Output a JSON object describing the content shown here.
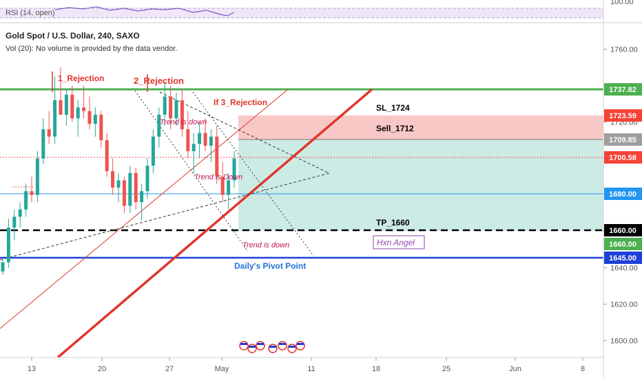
{
  "rsi": {
    "label": "RSI (14, open)",
    "level_label": "100.00"
  },
  "symbol": {
    "title": "Gold Spot / U.S. Dollar, 240, SAXO",
    "volume_note": "Vol (20): No volume is provided by the data vendor."
  },
  "chart_data": {
    "type": "candlestick",
    "y_ticks": [
      "1760.00",
      "1740.00",
      "1720.00",
      "1700.00",
      "1680.00",
      "1660.00",
      "1640.00",
      "1620.00",
      "1600.00"
    ],
    "x_ticks": [
      "13",
      "20",
      "27",
      "May",
      "11",
      "18",
      "25",
      "Jun",
      "8"
    ],
    "price_badges": [
      {
        "label": "1737.82",
        "bg": "#4caf50",
        "fg": "#ffffff",
        "price": 1737.82
      },
      {
        "label": "1723.59",
        "bg": "#f44336",
        "fg": "#ffffff",
        "price": 1723.59
      },
      {
        "label": "1709.85",
        "bg": "#9e9e9e",
        "fg": "#ffffff",
        "price": 1709.85
      },
      {
        "label": "1700.58",
        "bg": "#f44336",
        "fg": "#ffffff",
        "price": 1700.58
      },
      {
        "label": "1680.00",
        "bg": "#2196f3",
        "fg": "#ffffff",
        "price": 1680.0
      },
      {
        "label": "1660.00",
        "bg": "#000000",
        "fg": "#ffffff",
        "price": 1660.0
      },
      {
        "label": "1660.00",
        "bg": "#4caf50",
        "fg": "#ffffff",
        "price": 1660.0
      },
      {
        "label": "1645.00",
        "bg": "#1e40d8",
        "fg": "#ffffff",
        "price": 1645.0
      }
    ],
    "annotations": {
      "rejection_1": "1_Rejection",
      "rejection_2": "2_Rejection",
      "rejection_3": "If 3_Rejection",
      "sl": "SL_1724",
      "sell": "Sell_1712",
      "tp": "TP_1660",
      "trend_1": "Trend is down",
      "trend_2": "Trend is Down",
      "trend_3": "Trend is down",
      "pivot": "Daily's Pivot Point",
      "author": "Hxn Angel"
    },
    "levels": {
      "resistance": 1737.82,
      "stop_loss": 1723.59,
      "entry": 1709.85,
      "current": 1700.58,
      "mid": 1680.0,
      "take_profit": 1660.0,
      "pivot": 1645.0
    },
    "colors": {
      "up": "#26a69a",
      "down": "#ef5350",
      "resistance": "#4caf50",
      "trendline": "#e0352b",
      "pivot": "#1e40d8",
      "mid": "#2196f3",
      "stop_zone": "#f8c8c6",
      "profit_zone": "#cdebe5"
    },
    "candles": [
      [
        1638,
        1645,
        1636,
        1643
      ],
      [
        1643,
        1667,
        1640,
        1662
      ],
      [
        1662,
        1672,
        1655,
        1668
      ],
      [
        1668,
        1676,
        1662,
        1672
      ],
      [
        1672,
        1686,
        1668,
        1682
      ],
      [
        1682,
        1690,
        1676,
        1680
      ],
      [
        1680,
        1704,
        1676,
        1700
      ],
      [
        1700,
        1722,
        1697,
        1716
      ],
      [
        1716,
        1726,
        1708,
        1712
      ],
      [
        1712,
        1745,
        1708,
        1732
      ],
      [
        1732,
        1750,
        1724,
        1724
      ],
      [
        1724,
        1738,
        1718,
        1735
      ],
      [
        1735,
        1740,
        1720,
        1722
      ],
      [
        1722,
        1732,
        1712,
        1728
      ],
      [
        1728,
        1740,
        1722,
        1726
      ],
      [
        1726,
        1734,
        1716,
        1719
      ],
      [
        1719,
        1728,
        1712,
        1724
      ],
      [
        1724,
        1726,
        1706,
        1710
      ],
      [
        1710,
        1714,
        1690,
        1693
      ],
      [
        1693,
        1700,
        1680,
        1684
      ],
      [
        1684,
        1692,
        1676,
        1688
      ],
      [
        1688,
        1690,
        1670,
        1674
      ],
      [
        1674,
        1696,
        1670,
        1692
      ],
      [
        1692,
        1695,
        1672,
        1676
      ],
      [
        1676,
        1686,
        1666,
        1682
      ],
      [
        1682,
        1700,
        1678,
        1696
      ],
      [
        1696,
        1716,
        1692,
        1712
      ],
      [
        1712,
        1728,
        1706,
        1724
      ],
      [
        1724,
        1742,
        1718,
        1734
      ],
      [
        1734,
        1740,
        1716,
        1722
      ],
      [
        1722,
        1736,
        1718,
        1732
      ],
      [
        1732,
        1738,
        1712,
        1716
      ],
      [
        1716,
        1726,
        1700,
        1704
      ],
      [
        1704,
        1714,
        1692,
        1708
      ],
      [
        1708,
        1720,
        1700,
        1714
      ],
      [
        1714,
        1722,
        1704,
        1707
      ],
      [
        1707,
        1716,
        1698,
        1712
      ],
      [
        1712,
        1718,
        1686,
        1690
      ],
      [
        1690,
        1698,
        1676,
        1680
      ],
      [
        1680,
        1692,
        1672,
        1688
      ],
      [
        1688,
        1704,
        1684,
        1700
      ]
    ]
  }
}
